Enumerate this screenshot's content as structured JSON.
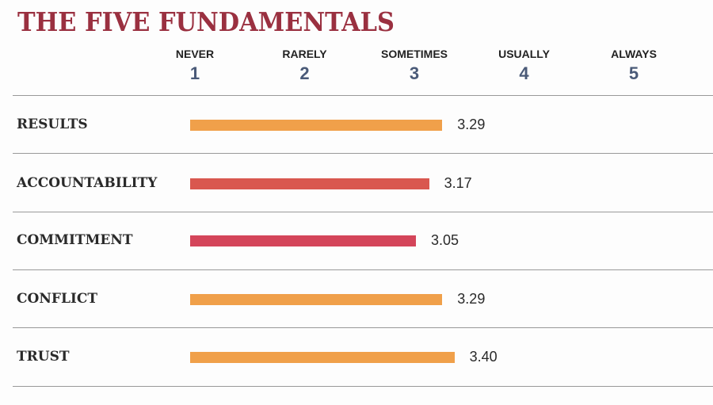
{
  "chart_data": {
    "type": "bar",
    "orientation": "horizontal",
    "title": "THE FIVE FUNDAMENTALS",
    "scale": [
      {
        "value": 1,
        "label": "NEVER"
      },
      {
        "value": 2,
        "label": "RARELY"
      },
      {
        "value": 3,
        "label": "SOMETIMES"
      },
      {
        "value": 4,
        "label": "USUALLY"
      },
      {
        "value": 5,
        "label": "ALWAYS"
      }
    ],
    "xlim": [
      1,
      5
    ],
    "grid": false,
    "categories": [
      "RESULTS",
      "ACCOUNTABILITY",
      "COMMITMENT",
      "CONFLICT",
      "TRUST"
    ],
    "values": [
      3.29,
      3.17,
      3.05,
      3.29,
      3.4
    ],
    "value_labels": [
      "3.29",
      "3.17",
      "3.05",
      "3.29",
      "3.40"
    ],
    "colors": [
      "#f0a04a",
      "#d9574f",
      "#d4455a",
      "#f0a04a",
      "#f0a04a"
    ]
  }
}
